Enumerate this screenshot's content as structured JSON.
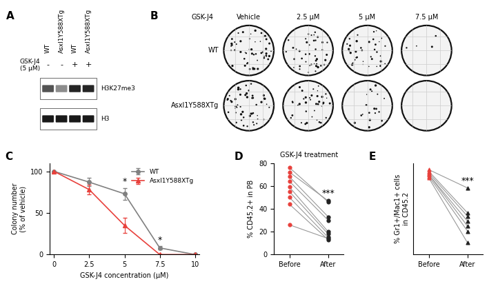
{
  "chart_data": [
    {
      "type": "blot",
      "panel_label": "A",
      "lanes": [
        "WT",
        "Asxl1Y588XTg",
        "WT",
        "Asxl1Y588XTg"
      ],
      "treatment": {
        "label": "GSK-J4\n(5 μM)",
        "values": [
          "-",
          "-",
          "+",
          "+"
        ]
      },
      "bands": [
        {
          "name": "H3K27me3",
          "intensities": [
            0.75,
            0.5,
            0.95,
            0.95
          ]
        },
        {
          "name": "H3",
          "intensities": [
            1,
            1,
            1,
            1
          ]
        }
      ]
    },
    {
      "type": "colony_images",
      "panel_label": "B",
      "title": "GSK-J4",
      "rows": [
        "WT",
        "Asxl1Y588XTg"
      ],
      "columns": [
        "Vehicle",
        "2.5 μM",
        "5 μM",
        "7.5 μM"
      ]
    },
    {
      "type": "line",
      "panel_label": "C",
      "x": [
        0,
        2.5,
        5,
        7.5,
        10
      ],
      "xlabel": "GSK-J4 concentration (μM)",
      "ylabel": "Colony number\n(% of vehicle)",
      "xlim": [
        -0.3,
        10.3
      ],
      "xticks": [
        0,
        2.5,
        5,
        7.5,
        10
      ],
      "ylim": [
        0,
        110
      ],
      "yticks": [
        0,
        50,
        100
      ],
      "legend": "upper right",
      "series": [
        {
          "name": "WT",
          "color": "#808080",
          "marker": "o",
          "values": [
            100,
            87,
            73,
            8,
            0
          ],
          "errors": [
            0,
            5,
            7,
            2,
            0
          ]
        },
        {
          "name": "Asxl1Y588XTg",
          "color": "#e8413c",
          "marker": "^",
          "values": [
            100,
            78,
            35,
            0,
            0
          ],
          "errors": [
            0,
            6,
            9,
            0,
            0
          ]
        }
      ],
      "annotations": [
        {
          "text": "*",
          "x": 5
        },
        {
          "text": "*",
          "x": 7.5
        }
      ]
    },
    {
      "type": "paired",
      "panel_label": "D",
      "title": "GSK-J4 treatment",
      "ylabel": "% CD45.2+ in PB",
      "categories": [
        "Before",
        "After"
      ],
      "colors": [
        "#e8413c",
        "#222222"
      ],
      "color": "#999999",
      "marker": "o",
      "ylim": [
        0,
        80
      ],
      "yticks": [
        0,
        20,
        40,
        60,
        80
      ],
      "series": [
        {
          "values": [
            76,
            46
          ]
        },
        {
          "values": [
            72,
            47
          ]
        },
        {
          "values": [
            68,
            33
          ]
        },
        {
          "values": [
            64,
            30
          ]
        },
        {
          "values": [
            59,
            20
          ]
        },
        {
          "values": [
            55,
            18
          ]
        },
        {
          "values": [
            50,
            15
          ]
        },
        {
          "values": [
            44,
            13
          ]
        },
        {
          "values": [
            26,
            14
          ]
        }
      ],
      "annotations": [
        {
          "text": "***",
          "category": "After"
        }
      ]
    },
    {
      "type": "paired",
      "panel_label": "E",
      "ylabel": "% Gr1+/Mac1+ cells\nin CD45.2",
      "categories": [
        "Before",
        "After"
      ],
      "colors": [
        "#e8413c",
        "#222222"
      ],
      "color": "#999999",
      "marker": "^",
      "ylim": [
        30,
        85
      ],
      "tick_labels": "x",
      "series": [
        {
          "values": [
            81,
            70
          ]
        },
        {
          "values": [
            80,
            55
          ]
        },
        {
          "values": [
            79,
            53
          ]
        },
        {
          "values": [
            78,
            50
          ]
        },
        {
          "values": [
            78,
            47
          ]
        },
        {
          "values": [
            77,
            44
          ]
        },
        {
          "values": [
            76,
            37
          ]
        }
      ],
      "annotations": [
        {
          "text": "***",
          "category": "After"
        }
      ]
    }
  ]
}
